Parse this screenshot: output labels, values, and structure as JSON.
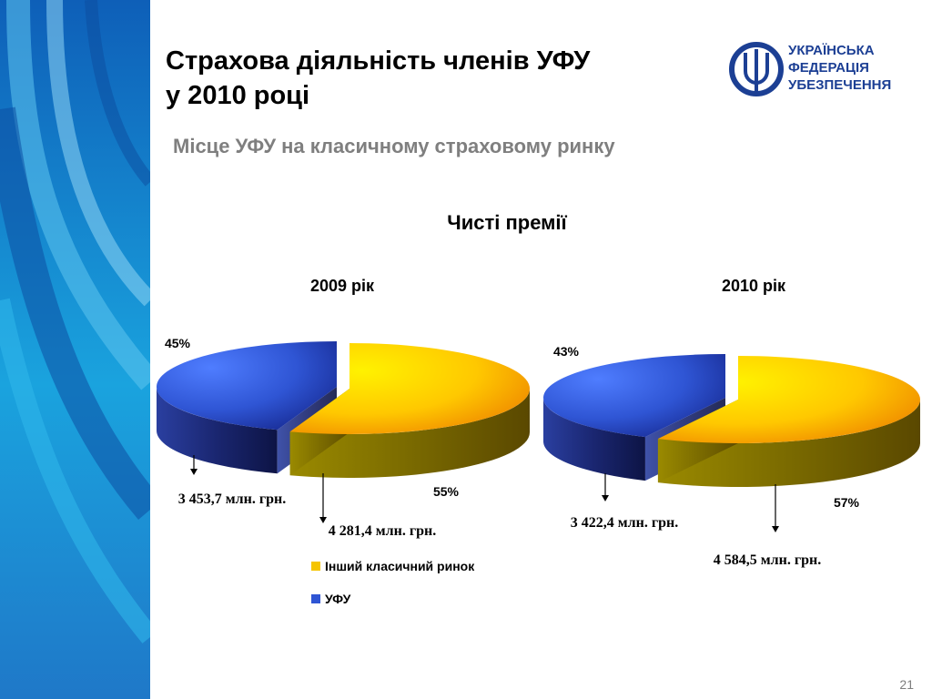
{
  "title_lines": [
    "Страхова діяльність членів УФУ",
    "у 2010 році"
  ],
  "subtitle": "Місце УФУ на класичному страховому ринку",
  "logo": {
    "lines": [
      "УКРАЇНСЬКА",
      "ФЕДЕРАЦІЯ",
      "УБЕЗПЕЧЕННЯ"
    ],
    "color": "#1c3f94"
  },
  "page_number": "21",
  "chart_data": [
    {
      "type": "pie",
      "title": "Чисті премії",
      "subtitle": "2009 рік",
      "slices": [
        {
          "name": "Інший класичний ринок",
          "value": 4281.4,
          "percent_label": "55%",
          "value_label": "4 281,4 млн. грн.",
          "color": "#f5c400"
        },
        {
          "name": "УФУ",
          "value": 3453.7,
          "percent_label": "45%",
          "value_label": "3 453,7 млн. грн.",
          "color": "#2f55d4"
        }
      ]
    },
    {
      "type": "pie",
      "title": "Чисті премії",
      "subtitle": "2010 рік",
      "slices": [
        {
          "name": "Інший класичний ринок",
          "value": 4584.5,
          "percent_label": "57%",
          "value_label": "4 584,5 млн. грн.",
          "color": "#f5c400"
        },
        {
          "name": "УФУ",
          "value": 3422.4,
          "percent_label": "43%",
          "value_label": "3 422,4 млн. грн.",
          "color": "#2f55d4"
        }
      ]
    }
  ],
  "legend": [
    {
      "label": "Інший класичний ринок",
      "color": "#f5c400"
    },
    {
      "label": "УФУ",
      "color": "#2f55d4"
    }
  ]
}
